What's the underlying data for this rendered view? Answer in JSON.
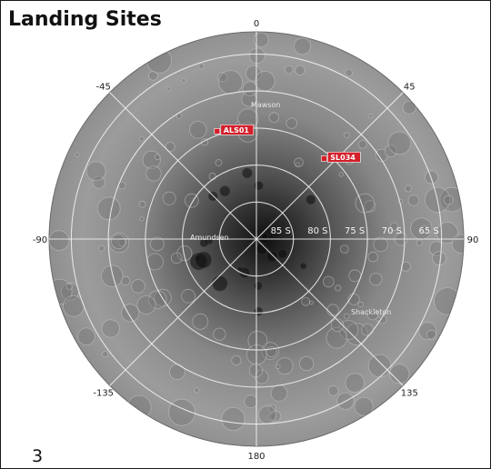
{
  "title": "Landing Sites",
  "page_number": "3",
  "colors": {
    "grid": "#f2f2f2",
    "site_marker": "#d41f2a",
    "surface_light": "#a7a7a7",
    "surface_dark": "#1b1b1b"
  },
  "longitude_labels": [
    {
      "text": "0",
      "lon": 0
    },
    {
      "text": "45",
      "lon": 45
    },
    {
      "text": "90",
      "lon": 90
    },
    {
      "text": "135",
      "lon": 135
    },
    {
      "text": "180",
      "lon": 180
    },
    {
      "text": "-135",
      "lon": -135
    },
    {
      "text": "-90",
      "lon": -90
    },
    {
      "text": "-45",
      "lon": -45
    }
  ],
  "latitude_labels": [
    "85 S",
    "80 S",
    "75 S",
    "70 S",
    "65 S"
  ],
  "crater_labels": [
    "Mawson",
    "Shackleton",
    "Amundsen"
  ],
  "landing_sites": [
    {
      "id": "ALS01",
      "lat": -74.5,
      "lon": -20
    },
    {
      "id": "SL034",
      "lat": -75.8,
      "lon": 40
    }
  ]
}
